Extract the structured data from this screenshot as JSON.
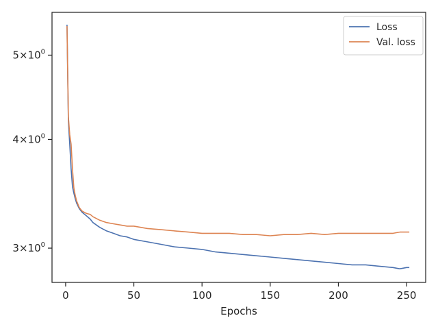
{
  "chart_data": {
    "type": "line",
    "title": "",
    "xlabel": "Epochs",
    "ylabel": "",
    "yscale": "log",
    "xlim": [
      -10,
      264
    ],
    "ylim": [
      2.74,
      5.6
    ],
    "grid": false,
    "legend": {
      "placement": "top-right",
      "entries": [
        "Loss",
        "Val. loss"
      ]
    },
    "x_ticks": [
      {
        "value": 0,
        "label": "0"
      },
      {
        "value": 50,
        "label": "50"
      },
      {
        "value": 100,
        "label": "100"
      },
      {
        "value": 150,
        "label": "150"
      },
      {
        "value": 200,
        "label": "200"
      },
      {
        "value": 250,
        "label": "250"
      }
    ],
    "y_ticks": [
      {
        "value": 3,
        "base": "3",
        "exp": "0"
      },
      {
        "value": 4,
        "base": "4",
        "exp": "0"
      },
      {
        "value": 5,
        "base": "5",
        "exp": "0"
      }
    ],
    "series": [
      {
        "name": "Loss",
        "color": "#4c72b0",
        "x": [
          1,
          2,
          3,
          4,
          5,
          6,
          7,
          8,
          10,
          12,
          15,
          18,
          20,
          25,
          30,
          35,
          40,
          45,
          50,
          60,
          70,
          80,
          90,
          100,
          110,
          120,
          130,
          140,
          150,
          160,
          170,
          180,
          190,
          200,
          210,
          220,
          230,
          240,
          245,
          250,
          252
        ],
        "y": [
          5.42,
          4.2,
          3.95,
          3.7,
          3.53,
          3.47,
          3.42,
          3.38,
          3.33,
          3.3,
          3.27,
          3.24,
          3.21,
          3.17,
          3.14,
          3.12,
          3.1,
          3.09,
          3.07,
          3.05,
          3.03,
          3.01,
          3.0,
          2.99,
          2.97,
          2.96,
          2.95,
          2.94,
          2.93,
          2.92,
          2.91,
          2.9,
          2.89,
          2.88,
          2.87,
          2.87,
          2.86,
          2.85,
          2.84,
          2.85,
          2.85
        ]
      },
      {
        "name": "Val. loss",
        "color": "#dd8452",
        "x": [
          1,
          2,
          3,
          4,
          5,
          6,
          7,
          8,
          10,
          12,
          15,
          18,
          20,
          25,
          30,
          35,
          40,
          45,
          50,
          60,
          70,
          80,
          90,
          100,
          110,
          120,
          130,
          140,
          150,
          160,
          170,
          180,
          190,
          200,
          210,
          220,
          230,
          240,
          245,
          250,
          252
        ],
        "y": [
          5.4,
          4.25,
          4.05,
          3.95,
          3.7,
          3.52,
          3.45,
          3.4,
          3.34,
          3.31,
          3.29,
          3.28,
          3.26,
          3.23,
          3.21,
          3.2,
          3.19,
          3.18,
          3.18,
          3.16,
          3.15,
          3.14,
          3.13,
          3.12,
          3.12,
          3.12,
          3.11,
          3.11,
          3.1,
          3.11,
          3.11,
          3.12,
          3.11,
          3.12,
          3.12,
          3.12,
          3.12,
          3.12,
          3.13,
          3.13,
          3.13
        ]
      }
    ]
  }
}
